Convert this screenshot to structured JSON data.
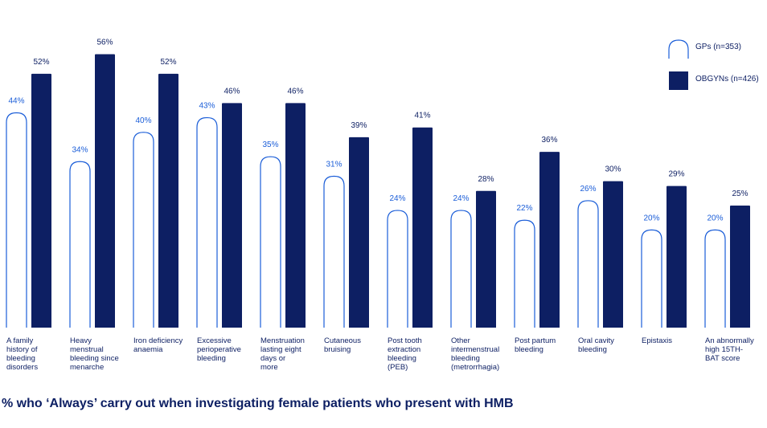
{
  "chart_data": {
    "type": "bar",
    "title": "% who ‘Always’ carry out when investigating female patients who present with HMB",
    "categories": [
      [
        "A family",
        "history of",
        "bleeding",
        "disorders"
      ],
      [
        "Heavy",
        "menstrual",
        "bleeding since",
        "menarche"
      ],
      [
        "Iron deficiency",
        "anaemia"
      ],
      [
        "Excessive",
        "perioperative",
        "bleeding"
      ],
      [
        "Menstruation",
        "lasting eight",
        "days or",
        "more"
      ],
      [
        "Cutaneous",
        "bruising"
      ],
      [
        "Post tooth",
        "extraction",
        "bleeding",
        "(PEB)"
      ],
      [
        "Other",
        "intermenstrual",
        "bleeding",
        "(metrorrhagia)"
      ],
      [
        "Post partum",
        "bleeding"
      ],
      [
        "Oral cavity",
        "bleeding"
      ],
      [
        "Epistaxis"
      ],
      [
        "An abnormally",
        "high 15TH-",
        "BAT score"
      ]
    ],
    "series": [
      {
        "name": "GPs (n=353)",
        "color": "#ffffff",
        "stroke": "#1a5dd8",
        "values": [
          44,
          34,
          40,
          43,
          35,
          31,
          24,
          24,
          22,
          26,
          20,
          20
        ],
        "labels": [
          "44%",
          "34%",
          "40%",
          "43%",
          "35%",
          "31%",
          "24%",
          "24%",
          "22%",
          "26%",
          "20%",
          "20%"
        ]
      },
      {
        "name": "OBGYNs (n=426)",
        "color": "#0d1f63",
        "stroke": "#0d1f63",
        "values": [
          52,
          56,
          52,
          46,
          46,
          39,
          41,
          28,
          36,
          30,
          29,
          25
        ],
        "labels": [
          "52%",
          "56%",
          "52%",
          "46%",
          "46%",
          "39%",
          "41%",
          "28%",
          "36%",
          "30%",
          "29%",
          "25%"
        ]
      }
    ],
    "ylim": [
      0,
      60
    ],
    "grid": false,
    "legend_position": "top-right"
  }
}
